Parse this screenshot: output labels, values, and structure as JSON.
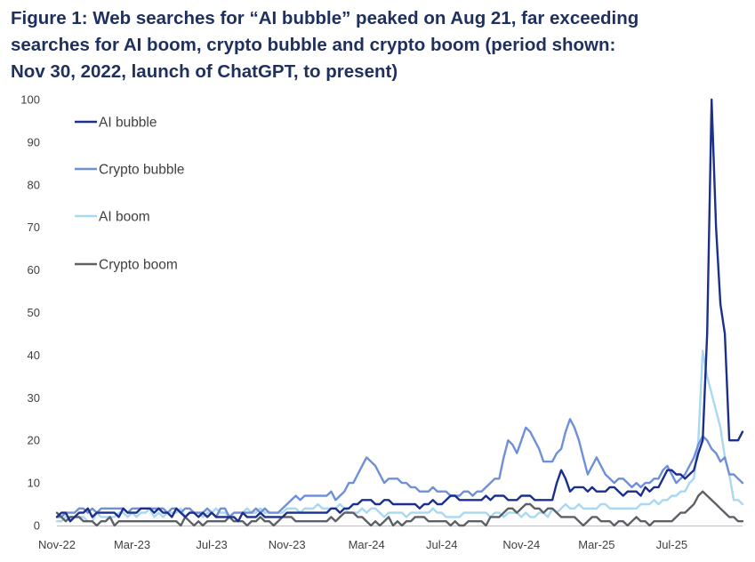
{
  "chart_data": {
    "type": "line",
    "title_lines": [
      "Figure 1: Web searches for “AI bubble” peaked on Aug 21, far exceeding",
      "searches for AI boom, crypto bubble and crypto boom (period shown:",
      "Nov 30, 2022, launch of ChatGPT, to present)"
    ],
    "xlabel": "",
    "ylabel": "",
    "ylim": [
      0,
      100
    ],
    "y_ticks": [
      0,
      10,
      20,
      30,
      40,
      50,
      60,
      70,
      80,
      90,
      100
    ],
    "x_ticks": [
      {
        "label": "Nov-22",
        "week": 0
      },
      {
        "label": "Mar-23",
        "week": 17
      },
      {
        "label": "Jul-23",
        "week": 35
      },
      {
        "label": "Nov-23",
        "week": 52
      },
      {
        "label": "Mar-24",
        "week": 70
      },
      {
        "label": "Jul-24",
        "week": 87
      },
      {
        "label": "Nov-24",
        "week": 105
      },
      {
        "label": "Mar-25",
        "week": 122
      },
      {
        "label": "Jul-25",
        "week": 139
      }
    ],
    "x_max_week": 155,
    "legend_position": "top-left",
    "series": [
      {
        "name": "AI bubble",
        "color": "#1b2f8c",
        "keypoints": [
          [
            0,
            2
          ],
          [
            4,
            2
          ],
          [
            5,
            3
          ],
          [
            10,
            3
          ],
          [
            16,
            3
          ],
          [
            20,
            4
          ],
          [
            28,
            3
          ],
          [
            40,
            2
          ],
          [
            50,
            2
          ],
          [
            54,
            3
          ],
          [
            56,
            3
          ],
          [
            58,
            3
          ],
          [
            62,
            4
          ],
          [
            65,
            4
          ],
          [
            68,
            5
          ],
          [
            70,
            6
          ],
          [
            72,
            5
          ],
          [
            80,
            5
          ],
          [
            82,
            4
          ],
          [
            84,
            5
          ],
          [
            88,
            6
          ],
          [
            90,
            7
          ],
          [
            94,
            6
          ],
          [
            98,
            6
          ],
          [
            100,
            7
          ],
          [
            102,
            6
          ],
          [
            104,
            6
          ],
          [
            106,
            7
          ],
          [
            108,
            6
          ],
          [
            110,
            6
          ],
          [
            112,
            6
          ],
          [
            114,
            13
          ],
          [
            116,
            8
          ],
          [
            118,
            9
          ],
          [
            120,
            8
          ],
          [
            124,
            8
          ],
          [
            126,
            9
          ],
          [
            128,
            7
          ],
          [
            130,
            8
          ],
          [
            134,
            8
          ],
          [
            136,
            9
          ],
          [
            138,
            13
          ],
          [
            140,
            12
          ],
          [
            142,
            11
          ],
          [
            144,
            13
          ],
          [
            146,
            20
          ],
          [
            147,
            45
          ],
          [
            148,
            100
          ],
          [
            149,
            70
          ],
          [
            150,
            52
          ],
          [
            151,
            45
          ],
          [
            152,
            20
          ],
          [
            154,
            20
          ],
          [
            155,
            22
          ]
        ]
      },
      {
        "name": "Crypto bubble",
        "color": "#6f8fd8",
        "keypoints": [
          [
            0,
            2
          ],
          [
            4,
            3
          ],
          [
            6,
            4
          ],
          [
            20,
            4
          ],
          [
            40,
            3
          ],
          [
            48,
            3
          ],
          [
            52,
            5
          ],
          [
            54,
            7
          ],
          [
            60,
            7
          ],
          [
            64,
            7
          ],
          [
            68,
            12
          ],
          [
            70,
            16
          ],
          [
            72,
            14
          ],
          [
            74,
            10
          ],
          [
            76,
            11
          ],
          [
            80,
            9
          ],
          [
            86,
            8
          ],
          [
            90,
            7
          ],
          [
            96,
            8
          ],
          [
            98,
            10
          ],
          [
            100,
            11
          ],
          [
            102,
            20
          ],
          [
            104,
            17
          ],
          [
            106,
            23
          ],
          [
            108,
            20
          ],
          [
            110,
            15
          ],
          [
            112,
            15
          ],
          [
            114,
            18
          ],
          [
            116,
            25
          ],
          [
            118,
            20
          ],
          [
            120,
            12
          ],
          [
            122,
            16
          ],
          [
            124,
            12
          ],
          [
            126,
            10
          ],
          [
            128,
            11
          ],
          [
            130,
            9
          ],
          [
            134,
            10
          ],
          [
            136,
            11
          ],
          [
            138,
            14
          ],
          [
            140,
            10
          ],
          [
            142,
            12
          ],
          [
            144,
            16
          ],
          [
            146,
            21
          ],
          [
            147,
            20
          ],
          [
            148,
            18
          ],
          [
            150,
            15
          ],
          [
            151,
            16
          ],
          [
            152,
            12
          ],
          [
            154,
            11
          ],
          [
            155,
            10
          ]
        ]
      },
      {
        "name": "AI boom",
        "color": "#a9d8f2",
        "keypoints": [
          [
            0,
            1
          ],
          [
            3,
            2
          ],
          [
            10,
            2
          ],
          [
            20,
            3
          ],
          [
            30,
            3
          ],
          [
            40,
            3
          ],
          [
            50,
            3
          ],
          [
            56,
            4
          ],
          [
            60,
            4
          ],
          [
            64,
            5
          ],
          [
            66,
            3
          ],
          [
            70,
            3
          ],
          [
            72,
            4
          ],
          [
            74,
            2
          ],
          [
            76,
            3
          ],
          [
            80,
            3
          ],
          [
            86,
            3
          ],
          [
            90,
            2
          ],
          [
            96,
            3
          ],
          [
            100,
            3
          ],
          [
            104,
            3
          ],
          [
            110,
            3
          ],
          [
            114,
            4
          ],
          [
            120,
            4
          ],
          [
            126,
            4
          ],
          [
            130,
            4
          ],
          [
            134,
            5
          ],
          [
            138,
            6
          ],
          [
            140,
            7
          ],
          [
            142,
            8
          ],
          [
            144,
            11
          ],
          [
            145,
            20
          ],
          [
            146,
            41
          ],
          [
            147,
            35
          ],
          [
            148,
            31
          ],
          [
            149,
            27
          ],
          [
            150,
            23
          ],
          [
            151,
            16
          ],
          [
            152,
            12
          ],
          [
            153,
            6
          ],
          [
            155,
            5
          ]
        ]
      },
      {
        "name": "Crypto boom",
        "color": "#5d6166",
        "keypoints": [
          [
            0,
            3
          ],
          [
            2,
            1
          ],
          [
            4,
            2
          ],
          [
            6,
            1
          ],
          [
            10,
            1
          ],
          [
            30,
            1
          ],
          [
            50,
            1
          ],
          [
            52,
            2
          ],
          [
            54,
            1
          ],
          [
            60,
            1
          ],
          [
            64,
            2
          ],
          [
            66,
            3
          ],
          [
            68,
            2
          ],
          [
            70,
            1
          ],
          [
            80,
            1
          ],
          [
            86,
            1
          ],
          [
            90,
            1
          ],
          [
            96,
            1
          ],
          [
            100,
            2
          ],
          [
            102,
            4
          ],
          [
            104,
            3
          ],
          [
            106,
            5
          ],
          [
            108,
            4
          ],
          [
            110,
            3
          ],
          [
            112,
            4
          ],
          [
            114,
            2
          ],
          [
            116,
            2
          ],
          [
            118,
            1
          ],
          [
            124,
            1
          ],
          [
            130,
            1
          ],
          [
            136,
            1
          ],
          [
            140,
            2
          ],
          [
            142,
            3
          ],
          [
            144,
            5
          ],
          [
            145,
            7
          ],
          [
            146,
            8
          ],
          [
            147,
            7
          ],
          [
            148,
            6
          ],
          [
            150,
            4
          ],
          [
            152,
            2
          ],
          [
            154,
            1
          ],
          [
            155,
            1
          ]
        ]
      }
    ]
  }
}
